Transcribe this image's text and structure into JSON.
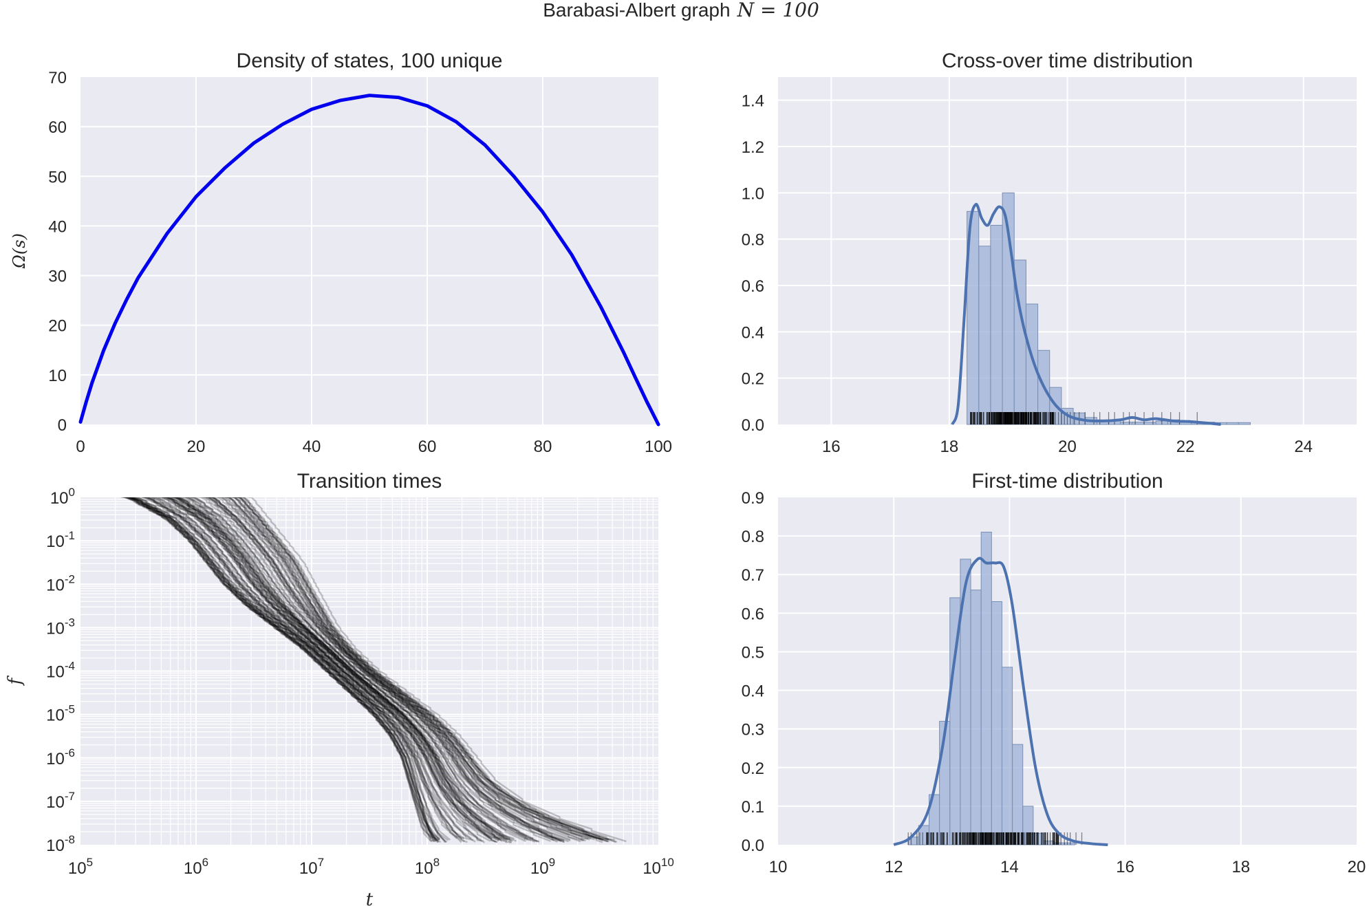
{
  "figure": {
    "suptitle": "Barabasi-Albert graph",
    "suptitle_math": "N = 100",
    "colors": {
      "panel_bg": "#eaeaf2",
      "grid": "#ffffff",
      "dos_line": "#0000ee",
      "hist_fill": "#9bb0d6",
      "hist_edge": "#7a8fb4",
      "kde_line": "#4c72b0",
      "rug": "#000000",
      "transition_line": "#000000",
      "text": "#262626"
    }
  },
  "chart_data": [
    {
      "id": "dos",
      "type": "line",
      "title": "Density of states, 100 unique",
      "xlabel": "",
      "ylabel": "Ω(s)",
      "xlim": [
        0,
        100
      ],
      "ylim": [
        0,
        70
      ],
      "xticks": [
        0,
        20,
        40,
        60,
        80,
        100
      ],
      "yticks": [
        0,
        10,
        20,
        30,
        40,
        50,
        60,
        70
      ],
      "grid": true,
      "series": [
        {
          "x": [
            0,
            1,
            2,
            4,
            6,
            8,
            10,
            15,
            20,
            25,
            30,
            35,
            40,
            45,
            50,
            55,
            60,
            65,
            70,
            75,
            80,
            85,
            90,
            94,
            96,
            98,
            99,
            100
          ],
          "values": [
            0.5,
            4.6,
            8.4,
            14.9,
            20.4,
            25.2,
            29.6,
            38.5,
            45.9,
            51.7,
            56.7,
            60.5,
            63.5,
            65.3,
            66.3,
            65.9,
            64.2,
            61.0,
            56.3,
            50.0,
            42.8,
            34.2,
            23.8,
            14.5,
            9.5,
            4.6,
            2.3,
            0.0
          ]
        }
      ]
    },
    {
      "id": "crossover",
      "type": "bar",
      "title": "Cross-over time distribution",
      "xlabel": "",
      "ylabel": "",
      "xlim": [
        15.1,
        24.9
      ],
      "ylim": [
        0,
        1.5
      ],
      "xticks": [
        16,
        18,
        20,
        22,
        24
      ],
      "yticks": [
        0.0,
        0.2,
        0.4,
        0.6,
        0.8,
        1.0,
        1.2,
        1.4
      ],
      "ytick_labels": [
        "0.0",
        "0.2",
        "0.4",
        "0.6",
        "0.8",
        "1.0",
        "1.2",
        "1.4"
      ],
      "grid": true,
      "histogram": {
        "bin_start": 18.3,
        "bin_width": 0.2,
        "values": [
          0.92,
          0.77,
          0.86,
          1.0,
          0.71,
          0.52,
          0.32,
          0.16,
          0.07,
          0.05,
          0.03,
          0.02,
          0.015,
          0.01,
          0.01,
          0.01,
          0.015,
          0.02,
          0.015,
          0.01,
          0.01,
          0.008,
          0.008,
          0.008
        ]
      },
      "kde": {
        "x": [
          18.05,
          18.15,
          18.25,
          18.35,
          18.45,
          18.55,
          18.65,
          18.75,
          18.85,
          18.95,
          19.05,
          19.15,
          19.3,
          19.5,
          19.75,
          20.0,
          20.3,
          20.6,
          20.9,
          21.1,
          21.3,
          21.5,
          21.8,
          22.1,
          22.4,
          22.6
        ],
        "values": [
          0.0,
          0.08,
          0.45,
          0.85,
          0.95,
          0.89,
          0.86,
          0.91,
          0.94,
          0.9,
          0.74,
          0.56,
          0.38,
          0.22,
          0.1,
          0.04,
          0.018,
          0.015,
          0.02,
          0.03,
          0.02,
          0.025,
          0.015,
          0.012,
          0.005,
          0.0
        ]
      },
      "rug": {
        "dense_range": [
          18.35,
          19.8
        ],
        "sparse_points": [
          19.85,
          19.9,
          19.95,
          20.0,
          20.05,
          20.12,
          20.2,
          20.3,
          20.45,
          20.55,
          20.7,
          20.8,
          20.95,
          21.05,
          21.15,
          21.3,
          21.45,
          21.6,
          21.75,
          21.9,
          22.2
        ]
      }
    },
    {
      "id": "transition",
      "type": "line",
      "title": "Transition times",
      "xlabel": "t",
      "ylabel": "f",
      "xscale": "log",
      "yscale": "log",
      "xlim_exp": [
        5,
        10
      ],
      "ylim_exp": [
        -8,
        0
      ],
      "xtick_base": "10",
      "xtick_exps": [
        "5",
        "6",
        "7",
        "8",
        "9",
        "10"
      ],
      "ytick_base": "10",
      "ytick_exps": [
        "0",
        "-1",
        "-2",
        "-3",
        "-4",
        "-5",
        "-6",
        "-7",
        "-8"
      ],
      "grid": true,
      "line_count": 100,
      "envelope": {
        "log_f": [
          0,
          -0.5,
          -1,
          -1.5,
          -2,
          -2.5,
          -3,
          -3.5,
          -4,
          -4.5,
          -5,
          -5.5,
          -6,
          -6.5,
          -7,
          -7.5,
          -7.9
        ],
        "log_t_lo": [
          5.4,
          5.75,
          5.95,
          6.1,
          6.25,
          6.45,
          6.7,
          6.95,
          7.15,
          7.35,
          7.55,
          7.7,
          7.8,
          7.85,
          7.9,
          7.95,
          8.0
        ],
        "log_t_hi": [
          6.45,
          6.6,
          6.75,
          6.9,
          7.0,
          7.1,
          7.2,
          7.35,
          7.55,
          7.8,
          8.05,
          8.25,
          8.4,
          8.55,
          8.8,
          9.2,
          9.65
        ]
      }
    },
    {
      "id": "firsttime",
      "type": "bar",
      "title": "First-time distribution",
      "xlabel": "",
      "ylabel": "",
      "xlim": [
        10,
        20
      ],
      "ylim": [
        0,
        0.9
      ],
      "xticks": [
        10,
        12,
        14,
        16,
        18,
        20
      ],
      "yticks": [
        0.0,
        0.1,
        0.2,
        0.3,
        0.4,
        0.5,
        0.6,
        0.7,
        0.8,
        0.9
      ],
      "ytick_labels": [
        "0.0",
        "0.1",
        "0.2",
        "0.3",
        "0.4",
        "0.5",
        "0.6",
        "0.7",
        "0.8",
        "0.9"
      ],
      "grid": true,
      "histogram": {
        "bin_start": 12.25,
        "bin_width": 0.18,
        "values": [
          0.02,
          0.05,
          0.13,
          0.32,
          0.64,
          0.74,
          0.66,
          0.81,
          0.63,
          0.46,
          0.26,
          0.1,
          0.03,
          0.01,
          0.005,
          0.005
        ]
      },
      "kde": {
        "x": [
          12.0,
          12.3,
          12.6,
          12.85,
          13.05,
          13.25,
          13.45,
          13.6,
          13.75,
          13.9,
          14.05,
          14.25,
          14.45,
          14.65,
          14.85,
          15.1,
          15.4,
          15.7
        ],
        "values": [
          0.0,
          0.02,
          0.09,
          0.26,
          0.48,
          0.68,
          0.74,
          0.73,
          0.73,
          0.72,
          0.62,
          0.4,
          0.2,
          0.08,
          0.03,
          0.01,
          0.003,
          0.0
        ]
      },
      "rug": {
        "dense_range": [
          12.55,
          14.9
        ],
        "sparse_points": [
          12.25,
          12.3,
          12.4,
          12.45,
          12.5,
          14.95,
          15.0,
          15.05,
          15.15,
          15.25
        ]
      }
    }
  ]
}
